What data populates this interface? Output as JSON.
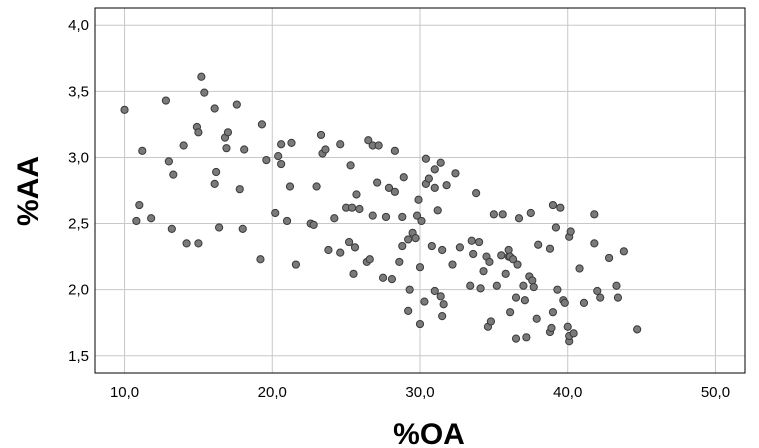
{
  "chart_data": {
    "type": "scatter",
    "title": "",
    "xlabel": "%OA",
    "ylabel": "%AA",
    "xlim": [
      8,
      52
    ],
    "ylim": [
      1.37,
      4.13
    ],
    "x_ticks": [
      10,
      20,
      30,
      40,
      50
    ],
    "x_tick_labels": [
      "10,0",
      "20,0",
      "30,0",
      "40,0",
      "50,0"
    ],
    "y_ticks": [
      1.5,
      2.0,
      2.5,
      3.0,
      3.5,
      4.0
    ],
    "y_tick_labels": [
      "1,5",
      "2,0",
      "2,5",
      "3,0",
      "3,5",
      "4,0"
    ],
    "grid": true,
    "legend": "none",
    "colors": {
      "marker_fill": "#7a7a7a",
      "marker_edge": "#3a3a3a",
      "grid": "#c8c8c8"
    },
    "points": [
      [
        10.0,
        3.36
      ],
      [
        10.8,
        2.52
      ],
      [
        11.0,
        2.64
      ],
      [
        11.2,
        3.05
      ],
      [
        11.8,
        2.54
      ],
      [
        12.8,
        3.43
      ],
      [
        13.0,
        2.97
      ],
      [
        13.2,
        2.46
      ],
      [
        13.3,
        2.87
      ],
      [
        14.0,
        3.09
      ],
      [
        14.2,
        2.35
      ],
      [
        14.9,
        3.23
      ],
      [
        15.0,
        3.19
      ],
      [
        15.0,
        2.35
      ],
      [
        15.2,
        3.61
      ],
      [
        15.4,
        3.49
      ],
      [
        16.1,
        3.37
      ],
      [
        16.1,
        2.8
      ],
      [
        16.2,
        2.89
      ],
      [
        16.4,
        2.47
      ],
      [
        16.8,
        3.15
      ],
      [
        16.9,
        3.07
      ],
      [
        17.0,
        3.19
      ],
      [
        17.6,
        3.4
      ],
      [
        17.8,
        2.76
      ],
      [
        18.1,
        3.06
      ],
      [
        18.0,
        2.46
      ],
      [
        19.2,
        2.23
      ],
      [
        19.3,
        3.25
      ],
      [
        19.6,
        2.98
      ],
      [
        20.2,
        2.58
      ],
      [
        20.4,
        3.01
      ],
      [
        20.6,
        2.95
      ],
      [
        20.6,
        3.1
      ],
      [
        21.0,
        2.52
      ],
      [
        21.2,
        2.78
      ],
      [
        21.3,
        3.11
      ],
      [
        21.6,
        2.19
      ],
      [
        22.6,
        2.5
      ],
      [
        22.8,
        2.49
      ],
      [
        23.0,
        2.78
      ],
      [
        23.3,
        3.17
      ],
      [
        23.4,
        3.03
      ],
      [
        23.6,
        3.06
      ],
      [
        23.8,
        2.3
      ],
      [
        24.2,
        2.54
      ],
      [
        24.6,
        2.28
      ],
      [
        24.6,
        3.1
      ],
      [
        25.0,
        2.62
      ],
      [
        25.2,
        2.36
      ],
      [
        25.3,
        2.94
      ],
      [
        25.4,
        2.62
      ],
      [
        25.5,
        2.12
      ],
      [
        25.6,
        2.32
      ],
      [
        25.7,
        2.72
      ],
      [
        25.9,
        2.61
      ],
      [
        26.4,
        2.21
      ],
      [
        26.5,
        3.13
      ],
      [
        26.6,
        2.23
      ],
      [
        26.8,
        3.09
      ],
      [
        26.8,
        2.56
      ],
      [
        27.1,
        2.81
      ],
      [
        27.2,
        3.09
      ],
      [
        27.5,
        2.09
      ],
      [
        27.7,
        2.55
      ],
      [
        27.9,
        2.77
      ],
      [
        28.1,
        2.08
      ],
      [
        28.3,
        2.74
      ],
      [
        28.3,
        3.05
      ],
      [
        28.6,
        2.21
      ],
      [
        28.8,
        2.55
      ],
      [
        28.8,
        2.33
      ],
      [
        28.9,
        2.85
      ],
      [
        29.2,
        1.84
      ],
      [
        29.2,
        2.38
      ],
      [
        29.3,
        2.0
      ],
      [
        29.5,
        2.43
      ],
      [
        29.7,
        2.39
      ],
      [
        29.8,
        2.56
      ],
      [
        29.9,
        2.68
      ],
      [
        30.0,
        1.74
      ],
      [
        30.0,
        2.17
      ],
      [
        30.1,
        2.52
      ],
      [
        30.3,
        1.91
      ],
      [
        30.4,
        2.8
      ],
      [
        30.4,
        2.99
      ],
      [
        30.6,
        2.84
      ],
      [
        30.8,
        2.33
      ],
      [
        31.0,
        2.77
      ],
      [
        31.0,
        2.91
      ],
      [
        31.0,
        1.99
      ],
      [
        31.2,
        2.6
      ],
      [
        31.4,
        1.95
      ],
      [
        31.4,
        2.96
      ],
      [
        31.5,
        2.3
      ],
      [
        31.5,
        1.8
      ],
      [
        31.6,
        1.89
      ],
      [
        31.8,
        2.79
      ],
      [
        32.2,
        2.19
      ],
      [
        32.4,
        2.88
      ],
      [
        32.7,
        2.32
      ],
      [
        33.4,
        2.03
      ],
      [
        33.5,
        2.37
      ],
      [
        33.6,
        2.27
      ],
      [
        33.8,
        2.73
      ],
      [
        34.0,
        2.36
      ],
      [
        34.1,
        2.01
      ],
      [
        34.3,
        2.14
      ],
      [
        34.5,
        2.25
      ],
      [
        34.6,
        1.72
      ],
      [
        34.7,
        2.21
      ],
      [
        34.8,
        1.76
      ],
      [
        35.0,
        2.57
      ],
      [
        35.2,
        2.03
      ],
      [
        35.5,
        2.26
      ],
      [
        35.6,
        2.57
      ],
      [
        35.8,
        2.12
      ],
      [
        36.0,
        2.25
      ],
      [
        36.0,
        2.3
      ],
      [
        36.1,
        2.25
      ],
      [
        36.1,
        1.83
      ],
      [
        36.3,
        2.23
      ],
      [
        36.5,
        1.94
      ],
      [
        36.5,
        1.63
      ],
      [
        36.6,
        2.19
      ],
      [
        36.7,
        2.54
      ],
      [
        37.0,
        2.03
      ],
      [
        37.1,
        1.92
      ],
      [
        37.2,
        1.64
      ],
      [
        37.4,
        2.1
      ],
      [
        37.5,
        2.58
      ],
      [
        37.6,
        2.07
      ],
      [
        37.7,
        2.02
      ],
      [
        37.9,
        1.78
      ],
      [
        38.0,
        2.34
      ],
      [
        38.8,
        1.68
      ],
      [
        38.8,
        2.31
      ],
      [
        38.9,
        1.71
      ],
      [
        39.0,
        1.83
      ],
      [
        39.0,
        2.64
      ],
      [
        39.2,
        2.47
      ],
      [
        39.3,
        2.0
      ],
      [
        39.5,
        2.62
      ],
      [
        39.7,
        1.92
      ],
      [
        39.8,
        1.9
      ],
      [
        40.0,
        1.72
      ],
      [
        40.1,
        2.4
      ],
      [
        40.1,
        1.61
      ],
      [
        40.1,
        1.65
      ],
      [
        40.2,
        2.44
      ],
      [
        40.4,
        1.67
      ],
      [
        40.8,
        2.16
      ],
      [
        41.1,
        1.9
      ],
      [
        41.8,
        2.57
      ],
      [
        41.8,
        2.35
      ],
      [
        42.0,
        1.99
      ],
      [
        42.2,
        1.94
      ],
      [
        42.8,
        2.24
      ],
      [
        43.3,
        2.03
      ],
      [
        43.4,
        1.94
      ],
      [
        43.8,
        2.29
      ],
      [
        44.7,
        1.7
      ]
    ]
  }
}
